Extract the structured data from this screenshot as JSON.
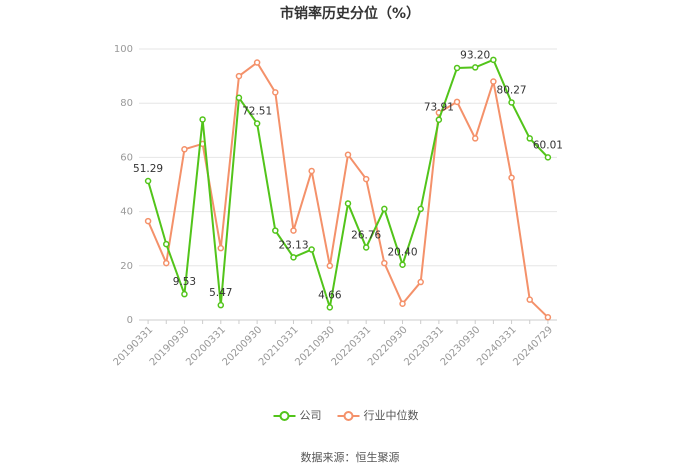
{
  "chart_data": {
    "type": "line",
    "title": "市销率历史分位（%）",
    "categories": [
      "20190331",
      null,
      "20190930",
      null,
      "20200331",
      null,
      "20200930",
      null,
      "20210331",
      null,
      "20210930",
      null,
      "20220331",
      null,
      "20220930",
      null,
      "20230331",
      null,
      "20230930",
      null,
      "20240331",
      null,
      "20240729"
    ],
    "series": [
      {
        "name": "公司",
        "color": "#52c41a",
        "values": [
          51.29,
          28,
          9.53,
          74,
          5.47,
          82,
          72.51,
          33,
          23.13,
          26,
          4.66,
          43,
          26.76,
          41,
          20.4,
          41,
          73.91,
          93,
          93.2,
          96,
          80.27,
          67,
          60.01
        ],
        "value_labels": [
          "51.29",
          null,
          "9.53",
          null,
          "5.47",
          null,
          "72.51",
          null,
          "23.13",
          null,
          "4.66",
          null,
          "26.76",
          null,
          "20.40",
          null,
          "73.91",
          null,
          "93.20",
          null,
          "80.27",
          null,
          "60.01"
        ]
      },
      {
        "name": "行业中位数",
        "color": "#f4916a",
        "values": [
          36.5,
          21,
          63,
          65,
          26.5,
          90,
          95,
          84,
          33,
          55,
          20,
          61,
          52,
          21,
          6,
          14,
          76.5,
          80.5,
          67,
          88,
          52.5,
          7.5,
          1
        ]
      }
    ],
    "ylim": [
      0,
      100
    ],
    "yticks": [
      0,
      20,
      40,
      60,
      80,
      100
    ],
    "grid": true,
    "legend": "bottom",
    "source": "数据来源：恒生聚源"
  }
}
